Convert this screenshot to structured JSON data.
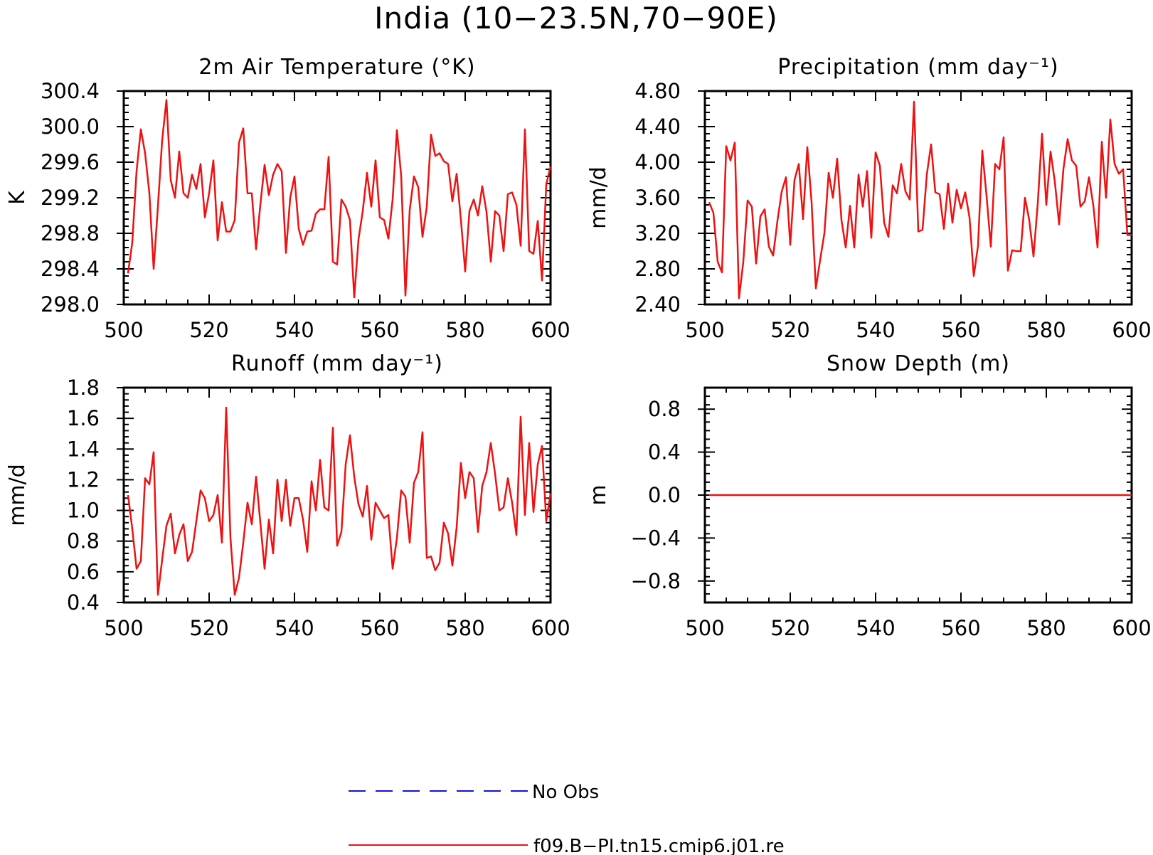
{
  "title": "India (10−23.5N,70−90E)",
  "legend": [
    {
      "label": "No Obs",
      "color": "#1010e0",
      "style": "dashed"
    },
    {
      "label": "f09.B−PI.tn15.cmip6.j01.re",
      "color": "#ee1111",
      "style": "solid"
    }
  ],
  "chart_data": [
    {
      "type": "line",
      "title": "2m Air Temperature (°K)",
      "ylabel": "K",
      "xlim": [
        500,
        600
      ],
      "ylim": [
        298.0,
        300.4
      ],
      "xticks": [
        500,
        520,
        540,
        560,
        580,
        600
      ],
      "xtick_labels": [
        "500",
        "520",
        "540",
        "560",
        "580",
        "600"
      ],
      "yticks": [
        298.0,
        298.4,
        298.8,
        299.2,
        299.6,
        300.0,
        300.4
      ],
      "ytick_labels": [
        "298.0",
        "298.4",
        "298.8",
        "299.2",
        "299.6",
        "300.0",
        "300.4"
      ],
      "x_start": 501,
      "series": [
        {
          "name": "f09.B−PI.tn15.cmip6.j01.re",
          "color": "#ee1111",
          "values": [
            298.35,
            298.7,
            299.5,
            299.97,
            299.7,
            299.25,
            298.4,
            299.1,
            299.85,
            300.3,
            299.4,
            299.2,
            299.72,
            299.25,
            299.2,
            299.46,
            299.3,
            299.58,
            298.98,
            299.25,
            299.62,
            298.72,
            299.15,
            298.82,
            298.82,
            298.95,
            299.82,
            299.98,
            299.25,
            299.25,
            298.62,
            299.12,
            299.57,
            299.23,
            299.46,
            299.58,
            299.5,
            298.58,
            299.2,
            299.44,
            298.85,
            298.67,
            298.82,
            298.83,
            299.02,
            299.07,
            299.07,
            299.66,
            298.48,
            298.45,
            299.18,
            299.1,
            298.95,
            298.08,
            298.73,
            299.05,
            299.48,
            299.1,
            299.62,
            298.98,
            298.95,
            298.74,
            299.18,
            299.96,
            299.45,
            298.1,
            299.06,
            299.44,
            299.32,
            298.76,
            299.1,
            299.91,
            299.67,
            299.7,
            299.61,
            299.58,
            299.16,
            299.47,
            298.95,
            298.37,
            299.05,
            299.18,
            299.0,
            299.33,
            299.04,
            298.48,
            299.05,
            299.0,
            298.6,
            299.24,
            299.26,
            299.12,
            298.66,
            299.97,
            298.6,
            298.57,
            298.94,
            298.27,
            299.35,
            299.55
          ]
        }
      ]
    },
    {
      "type": "line",
      "title": "Precipitation (mm day⁻¹)",
      "ylabel": "mm/d",
      "xlim": [
        500,
        600
      ],
      "ylim": [
        2.4,
        4.8
      ],
      "xticks": [
        500,
        520,
        540,
        560,
        580,
        600
      ],
      "xtick_labels": [
        "500",
        "520",
        "540",
        "560",
        "580",
        "600"
      ],
      "yticks": [
        2.4,
        2.8,
        3.2,
        3.6,
        4.0,
        4.4,
        4.8
      ],
      "ytick_labels": [
        "2.40",
        "2.80",
        "3.20",
        "3.60",
        "4.00",
        "4.40",
        "4.80"
      ],
      "x_start": 501,
      "series": [
        {
          "name": "f09.B−PI.tn15.cmip6.j01.re",
          "color": "#ee1111",
          "values": [
            3.55,
            3.43,
            2.88,
            2.76,
            4.18,
            4.02,
            4.22,
            2.47,
            2.88,
            3.57,
            3.5,
            2.86,
            3.39,
            3.47,
            3.05,
            2.95,
            3.34,
            3.67,
            3.83,
            3.07,
            3.8,
            3.98,
            3.36,
            4.17,
            3.55,
            2.58,
            2.9,
            3.2,
            3.88,
            3.6,
            4.04,
            3.35,
            3.04,
            3.51,
            3.04,
            3.86,
            3.5,
            3.9,
            3.15,
            4.11,
            3.96,
            3.32,
            3.16,
            3.74,
            3.65,
            3.98,
            3.67,
            3.58,
            4.68,
            3.22,
            3.24,
            3.86,
            4.2,
            3.66,
            3.64,
            3.25,
            3.76,
            3.32,
            3.69,
            3.48,
            3.66,
            3.38,
            2.72,
            3.06,
            4.13,
            3.62,
            3.05,
            3.98,
            3.92,
            4.28,
            2.78,
            3.01,
            3.0,
            3.0,
            3.6,
            3.35,
            2.94,
            3.54,
            4.32,
            3.52,
            4.12,
            3.78,
            3.3,
            3.92,
            4.26,
            4.02,
            3.96,
            3.5,
            3.56,
            3.83,
            3.52,
            3.04,
            4.23,
            3.6,
            4.48,
            3.98,
            3.87,
            3.92,
            3.18,
            3.18
          ]
        }
      ]
    },
    {
      "type": "line",
      "title": "Runoff (mm day⁻¹)",
      "ylabel": "mm/d",
      "xlim": [
        500,
        600
      ],
      "ylim": [
        0.4,
        1.8
      ],
      "xticks": [
        500,
        520,
        540,
        560,
        580,
        600
      ],
      "xtick_labels": [
        "500",
        "520",
        "540",
        "560",
        "580",
        "600"
      ],
      "yticks": [
        0.4,
        0.6,
        0.8,
        1.0,
        1.2,
        1.4,
        1.6,
        1.8
      ],
      "ytick_labels": [
        "0.4",
        "0.6",
        "0.8",
        "1.0",
        "1.2",
        "1.4",
        "1.6",
        "1.8"
      ],
      "x_start": 501,
      "series": [
        {
          "name": "f09.B−PI.tn15.cmip6.j01.re",
          "color": "#ee1111",
          "values": [
            1.1,
            0.88,
            0.62,
            0.67,
            1.21,
            1.17,
            1.38,
            0.45,
            0.68,
            0.9,
            0.98,
            0.72,
            0.84,
            0.91,
            0.67,
            0.73,
            0.93,
            1.13,
            1.08,
            0.93,
            0.97,
            1.1,
            0.79,
            1.67,
            0.82,
            0.45,
            0.56,
            0.79,
            1.05,
            0.91,
            1.22,
            0.92,
            0.62,
            0.94,
            0.72,
            1.2,
            0.93,
            1.2,
            0.9,
            1.08,
            1.08,
            0.94,
            0.73,
            1.19,
            1.0,
            1.33,
            1.02,
            1.0,
            1.54,
            0.77,
            0.86,
            1.3,
            1.49,
            1.22,
            1.04,
            0.96,
            1.16,
            0.81,
            1.05,
            1.0,
            0.95,
            0.97,
            0.62,
            0.82,
            1.13,
            1.09,
            0.79,
            1.18,
            1.25,
            1.51,
            0.69,
            0.7,
            0.61,
            0.66,
            0.92,
            0.85,
            0.64,
            0.89,
            1.31,
            1.08,
            1.25,
            1.21,
            0.86,
            1.16,
            1.25,
            1.44,
            1.24,
            1.0,
            1.02,
            1.21,
            1.05,
            0.84,
            1.61,
            0.97,
            1.44,
            0.99,
            1.3,
            1.42,
            0.93,
            1.11
          ]
        }
      ]
    },
    {
      "type": "line",
      "title": "Snow Depth (m)",
      "ylabel": "m",
      "xlim": [
        500,
        600
      ],
      "ylim": [
        -1.0,
        1.0
      ],
      "xticks": [
        500,
        520,
        540,
        560,
        580,
        600
      ],
      "xtick_labels": [
        "500",
        "520",
        "540",
        "560",
        "580",
        "600"
      ],
      "yticks": [
        -0.8,
        -0.4,
        0.0,
        0.4,
        0.8
      ],
      "ytick_labels": [
        "−0.8",
        "−0.4",
        "0.0",
        "0.4",
        "0.8"
      ],
      "x_start": 501,
      "series": [
        {
          "name": "f09.B−PI.tn15.cmip6.j01.re",
          "color": "#ee1111",
          "values": [
            0,
            0,
            0,
            0,
            0,
            0,
            0,
            0,
            0,
            0,
            0,
            0,
            0,
            0,
            0,
            0,
            0,
            0,
            0,
            0,
            0,
            0,
            0,
            0,
            0,
            0,
            0,
            0,
            0,
            0,
            0,
            0,
            0,
            0,
            0,
            0,
            0,
            0,
            0,
            0,
            0,
            0,
            0,
            0,
            0,
            0,
            0,
            0,
            0,
            0,
            0,
            0,
            0,
            0,
            0,
            0,
            0,
            0,
            0,
            0,
            0,
            0,
            0,
            0,
            0,
            0,
            0,
            0,
            0,
            0,
            0,
            0,
            0,
            0,
            0,
            0,
            0,
            0,
            0,
            0,
            0,
            0,
            0,
            0,
            0,
            0,
            0,
            0,
            0,
            0,
            0,
            0,
            0,
            0,
            0,
            0,
            0,
            0,
            0,
            0
          ]
        }
      ]
    }
  ]
}
